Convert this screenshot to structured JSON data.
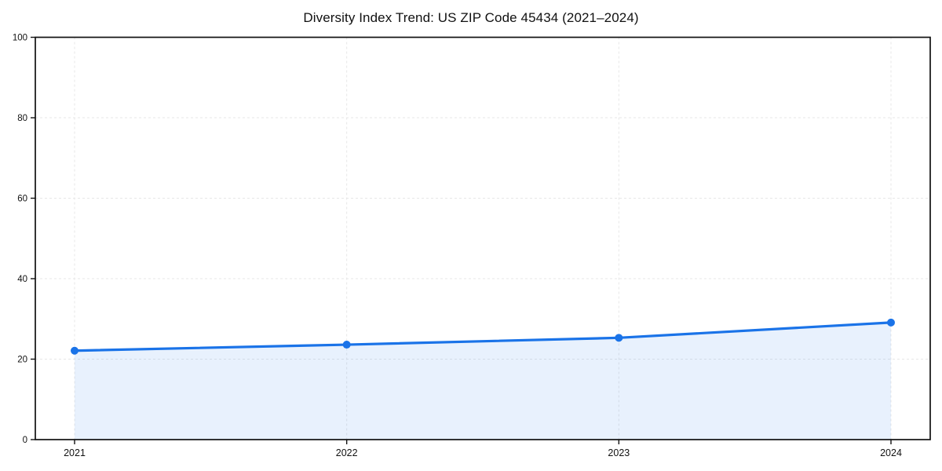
{
  "page": {
    "background_color": "#ffffff"
  },
  "chart_data": {
    "type": "line",
    "title": "Diversity Index Trend: US ZIP Code 45434 (2021–2024)",
    "categories": [
      "2021",
      "2022",
      "2023",
      "2024"
    ],
    "series": [
      {
        "name": "Diversity Index",
        "values": [
          22.1,
          23.6,
          25.3,
          29.1
        ]
      }
    ],
    "xlabel": "",
    "ylabel": "",
    "ylim": [
      0,
      100
    ],
    "yticks": [
      0,
      20,
      40,
      60,
      80,
      100
    ],
    "grid": "dashed both directions",
    "legend": "none",
    "area_fill": true,
    "marker": "circle",
    "colors": {
      "line": "#1a73e8",
      "marker": "#1a73e8",
      "fill": "rgba(26,115,232,0.10)",
      "grid": "#e7e7e7",
      "spine": "#111111",
      "tick_text": "#111111",
      "title_text": "#111111"
    }
  }
}
